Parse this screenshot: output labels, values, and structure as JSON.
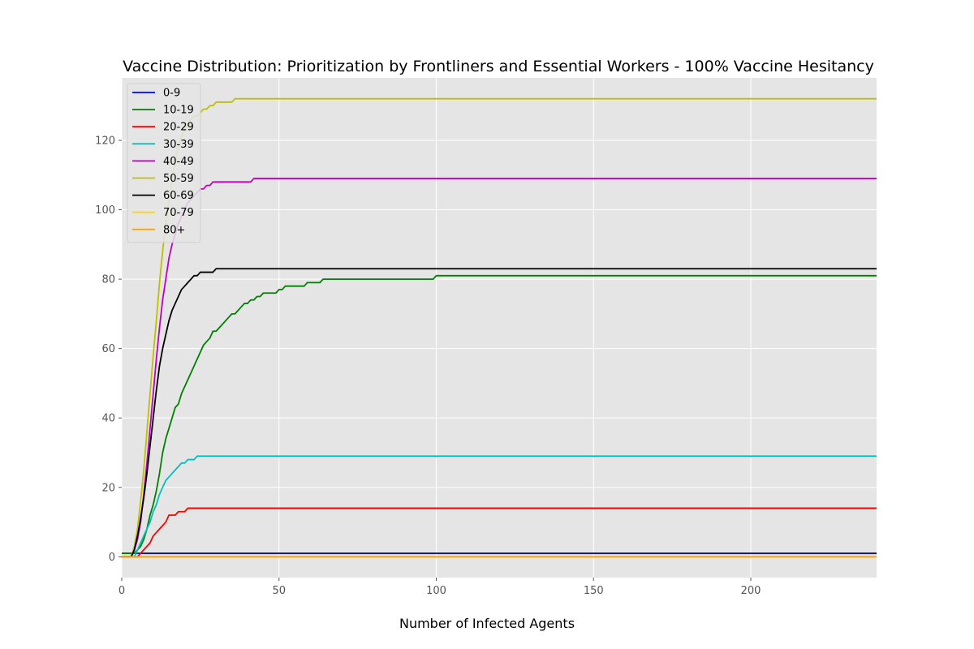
{
  "chart_data": {
    "type": "line",
    "title": "Vaccine Distribution: Prioritization by Frontliners and Essential Workers - 100% Vaccine Hesitancy",
    "xlabel": "Number of Infected Agents",
    "ylabel": "",
    "xlim": [
      0,
      240
    ],
    "ylim": [
      -6,
      138
    ],
    "xticks": [
      0,
      50,
      100,
      150,
      200
    ],
    "yticks": [
      0,
      20,
      40,
      60,
      80,
      100,
      120
    ],
    "grid": true,
    "legend_position": "upper-left",
    "background_color": "#e5e5e5",
    "grid_color": "#ffffff",
    "series": [
      {
        "name": "0-9",
        "color": "#0000ff",
        "points": [
          [
            0,
            1
          ],
          [
            240,
            1
          ]
        ]
      },
      {
        "name": "10-19",
        "color": "#008000",
        "points": [
          [
            0,
            1
          ],
          [
            3,
            1
          ],
          [
            4,
            1
          ],
          [
            5,
            2
          ],
          [
            6,
            3
          ],
          [
            7,
            5
          ],
          [
            8,
            8
          ],
          [
            9,
            12
          ],
          [
            10,
            15
          ],
          [
            11,
            19
          ],
          [
            12,
            24
          ],
          [
            13,
            30
          ],
          [
            14,
            34
          ],
          [
            15,
            37
          ],
          [
            16,
            40
          ],
          [
            17,
            43
          ],
          [
            18,
            44
          ],
          [
            19,
            47
          ],
          [
            20,
            49
          ],
          [
            22,
            53
          ],
          [
            24,
            57
          ],
          [
            26,
            61
          ],
          [
            28,
            63
          ],
          [
            29,
            65
          ],
          [
            30,
            65
          ],
          [
            32,
            67
          ],
          [
            34,
            69
          ],
          [
            35,
            70
          ],
          [
            36,
            70
          ],
          [
            38,
            72
          ],
          [
            39,
            73
          ],
          [
            40,
            73
          ],
          [
            41,
            74
          ],
          [
            42,
            74
          ],
          [
            43,
            75
          ],
          [
            44,
            75
          ],
          [
            45,
            76
          ],
          [
            48,
            76
          ],
          [
            49,
            76
          ],
          [
            50,
            77
          ],
          [
            51,
            77
          ],
          [
            52,
            78
          ],
          [
            58,
            78
          ],
          [
            59,
            79
          ],
          [
            63,
            79
          ],
          [
            64,
            80
          ],
          [
            99,
            80
          ],
          [
            100,
            81
          ],
          [
            240,
            81
          ]
        ]
      },
      {
        "name": "20-29",
        "color": "#ff0000",
        "points": [
          [
            0,
            0
          ],
          [
            5,
            0
          ],
          [
            6,
            1
          ],
          [
            7,
            2
          ],
          [
            8,
            3
          ],
          [
            9,
            4
          ],
          [
            10,
            6
          ],
          [
            12,
            8
          ],
          [
            14,
            10
          ],
          [
            15,
            12
          ],
          [
            16,
            12
          ],
          [
            17,
            12
          ],
          [
            18,
            13
          ],
          [
            20,
            13
          ],
          [
            21,
            14
          ],
          [
            240,
            14
          ]
        ]
      },
      {
        "name": "30-39",
        "color": "#00bfbf",
        "points": [
          [
            0,
            0
          ],
          [
            4,
            0
          ],
          [
            5,
            2
          ],
          [
            6,
            4
          ],
          [
            7,
            6
          ],
          [
            8,
            8
          ],
          [
            9,
            10
          ],
          [
            10,
            13
          ],
          [
            11,
            15
          ],
          [
            12,
            18
          ],
          [
            13,
            20
          ],
          [
            14,
            22
          ],
          [
            15,
            23
          ],
          [
            16,
            24
          ],
          [
            17,
            25
          ],
          [
            18,
            26
          ],
          [
            19,
            27
          ],
          [
            20,
            27
          ],
          [
            21,
            28
          ],
          [
            23,
            28
          ],
          [
            24,
            29
          ],
          [
            240,
            29
          ]
        ]
      },
      {
        "name": "40-49",
        "color": "#bf00bf",
        "points": [
          [
            0,
            0
          ],
          [
            3,
            0
          ],
          [
            4,
            2
          ],
          [
            5,
            5
          ],
          [
            6,
            10
          ],
          [
            7,
            18
          ],
          [
            8,
            27
          ],
          [
            9,
            37
          ],
          [
            10,
            47
          ],
          [
            11,
            57
          ],
          [
            12,
            66
          ],
          [
            13,
            74
          ],
          [
            14,
            80
          ],
          [
            15,
            86
          ],
          [
            16,
            90
          ],
          [
            17,
            93
          ],
          [
            18,
            96
          ],
          [
            19,
            98
          ],
          [
            20,
            100
          ],
          [
            21,
            102
          ],
          [
            22,
            103
          ],
          [
            23,
            104
          ],
          [
            24,
            105
          ],
          [
            25,
            106
          ],
          [
            26,
            106
          ],
          [
            27,
            107
          ],
          [
            28,
            107
          ],
          [
            29,
            108
          ],
          [
            41,
            108
          ],
          [
            42,
            109
          ],
          [
            240,
            109
          ]
        ]
      },
      {
        "name": "50-59",
        "color": "#bfbf00",
        "points": [
          [
            0,
            0
          ],
          [
            3,
            0
          ],
          [
            4,
            3
          ],
          [
            5,
            8
          ],
          [
            6,
            16
          ],
          [
            7,
            25
          ],
          [
            8,
            36
          ],
          [
            9,
            47
          ],
          [
            10,
            58
          ],
          [
            11,
            68
          ],
          [
            12,
            79
          ],
          [
            13,
            88
          ],
          [
            14,
            96
          ],
          [
            15,
            103
          ],
          [
            16,
            109
          ],
          [
            17,
            114
          ],
          [
            18,
            118
          ],
          [
            19,
            121
          ],
          [
            20,
            123
          ],
          [
            21,
            125
          ],
          [
            22,
            126
          ],
          [
            23,
            127
          ],
          [
            24,
            127
          ],
          [
            25,
            128
          ],
          [
            26,
            129
          ],
          [
            27,
            129
          ],
          [
            28,
            130
          ],
          [
            29,
            130
          ],
          [
            30,
            131
          ],
          [
            35,
            131
          ],
          [
            36,
            132
          ],
          [
            240,
            132
          ]
        ]
      },
      {
        "name": "60-69",
        "color": "#000000",
        "points": [
          [
            0,
            0
          ],
          [
            3,
            0
          ],
          [
            4,
            2
          ],
          [
            5,
            6
          ],
          [
            6,
            11
          ],
          [
            7,
            17
          ],
          [
            8,
            24
          ],
          [
            9,
            32
          ],
          [
            10,
            40
          ],
          [
            11,
            48
          ],
          [
            12,
            55
          ],
          [
            13,
            60
          ],
          [
            14,
            64
          ],
          [
            15,
            68
          ],
          [
            16,
            71
          ],
          [
            17,
            73
          ],
          [
            18,
            75
          ],
          [
            19,
            77
          ],
          [
            20,
            78
          ],
          [
            21,
            79
          ],
          [
            22,
            80
          ],
          [
            23,
            81
          ],
          [
            24,
            81
          ],
          [
            25,
            82
          ],
          [
            29,
            82
          ],
          [
            30,
            83
          ],
          [
            240,
            83
          ]
        ]
      },
      {
        "name": "70-79",
        "color": "#ffd700",
        "points": [
          [
            0,
            0
          ],
          [
            240,
            0
          ]
        ]
      },
      {
        "name": "80+",
        "color": "#ffa500",
        "points": [
          [
            0,
            0
          ],
          [
            240,
            0
          ]
        ]
      }
    ]
  }
}
